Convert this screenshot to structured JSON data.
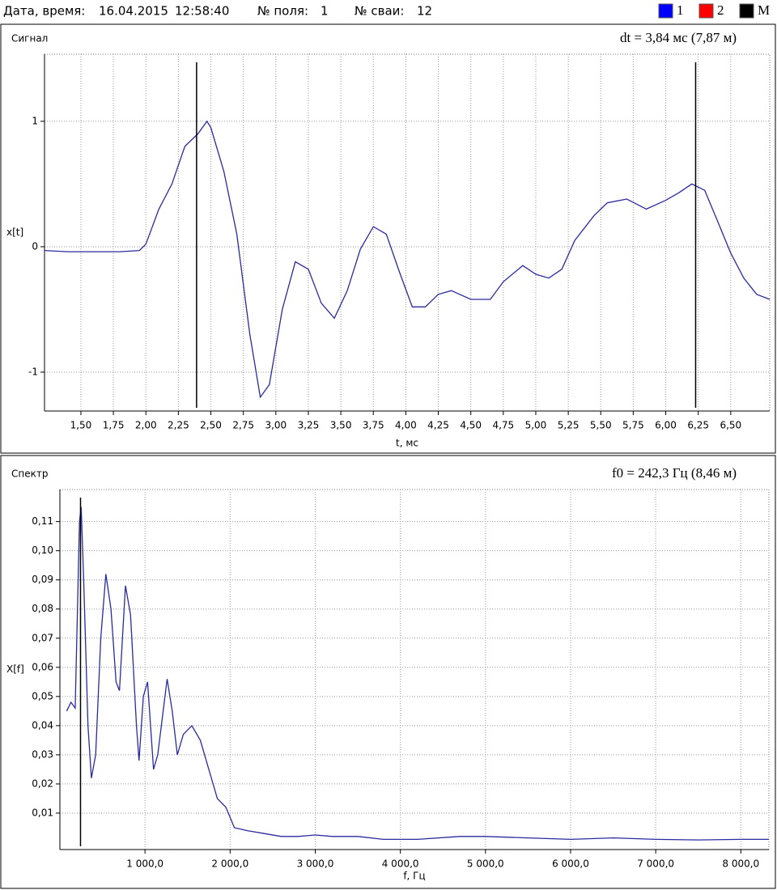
{
  "header": {
    "date_label": "Дата, время:",
    "date": "16.04.2015",
    "time": "12:58:40",
    "field_label": "№ поля:",
    "field": "1",
    "pile_label": "№ сваи:",
    "pile": "12",
    "legend": [
      {
        "name": "1",
        "color": "#0000ff"
      },
      {
        "name": "2",
        "color": "#ff0000"
      },
      {
        "name": "M",
        "color": "#000000"
      }
    ]
  },
  "chart_data": [
    {
      "type": "line",
      "title": "Сигнал",
      "annotation": "dt = 3,84 мс  (7,87 м)",
      "ylabel": "x[t]",
      "xlabel": "t, мс",
      "color": "#2a2aa0",
      "grid": true,
      "x": [
        1.22,
        1.4,
        1.6,
        1.8,
        1.95,
        2.0,
        2.1,
        2.2,
        2.3,
        2.4,
        2.47,
        2.5,
        2.6,
        2.7,
        2.8,
        2.88,
        2.95,
        3.05,
        3.15,
        3.25,
        3.35,
        3.45,
        3.55,
        3.65,
        3.75,
        3.85,
        3.95,
        4.05,
        4.15,
        4.25,
        4.35,
        4.5,
        4.65,
        4.75,
        4.9,
        5.0,
        5.1,
        5.2,
        5.3,
        5.45,
        5.55,
        5.7,
        5.85,
        6.0,
        6.1,
        6.2,
        6.3,
        6.4,
        6.5,
        6.6,
        6.7,
        6.8
      ],
      "values": [
        -0.03,
        -0.04,
        -0.04,
        -0.04,
        -0.03,
        0.02,
        0.3,
        0.5,
        0.8,
        0.9,
        1.0,
        0.95,
        0.6,
        0.1,
        -0.7,
        -1.2,
        -1.1,
        -0.5,
        -0.12,
        -0.18,
        -0.45,
        -0.57,
        -0.35,
        -0.02,
        0.16,
        0.1,
        -0.2,
        -0.48,
        -0.48,
        -0.38,
        -0.35,
        -0.42,
        -0.42,
        -0.28,
        -0.15,
        -0.22,
        -0.25,
        -0.18,
        0.05,
        0.25,
        0.35,
        0.38,
        0.3,
        0.37,
        0.43,
        0.5,
        0.45,
        0.2,
        -0.05,
        -0.25,
        -0.38,
        -0.42
      ],
      "cursors": [
        2.39,
        6.23
      ],
      "xlim": [
        1.22,
        6.8
      ],
      "ylim": [
        -1.31,
        1.535
      ],
      "xticks": [
        {
          "value": 1.5,
          "label": "1,50"
        },
        {
          "value": 1.75,
          "label": "1,75"
        },
        {
          "value": 2.0,
          "label": "2,00"
        },
        {
          "value": 2.25,
          "label": "2,25"
        },
        {
          "value": 2.5,
          "label": "2,50"
        },
        {
          "value": 2.75,
          "label": "2,75"
        },
        {
          "value": 3.0,
          "label": "3,00"
        },
        {
          "value": 3.25,
          "label": "3,25"
        },
        {
          "value": 3.5,
          "label": "3,50"
        },
        {
          "value": 3.75,
          "label": "3,75"
        },
        {
          "value": 4.0,
          "label": "4,00"
        },
        {
          "value": 4.25,
          "label": "4,25"
        },
        {
          "value": 4.5,
          "label": "4,50"
        },
        {
          "value": 4.75,
          "label": "4,75"
        },
        {
          "value": 5.0,
          "label": "5,00"
        },
        {
          "value": 5.25,
          "label": "5,25"
        },
        {
          "value": 5.5,
          "label": "5,50"
        },
        {
          "value": 5.75,
          "label": "5,75"
        },
        {
          "value": 6.0,
          "label": "6,00"
        },
        {
          "value": 6.25,
          "label": "6,25"
        },
        {
          "value": 6.5,
          "label": "6,50"
        }
      ],
      "yticks": [
        1,
        0,
        -1
      ]
    },
    {
      "type": "line",
      "title": "Спектр",
      "annotation": "f0 = 242,3 Гц  (8,46 м)",
      "ylabel": "X[f]",
      "xlabel": "f, Гц",
      "color": "#2a2aa0",
      "grid": true,
      "x": [
        80,
        130,
        180,
        230,
        250,
        280,
        330,
        370,
        420,
        480,
        540,
        600,
        660,
        700,
        770,
        830,
        900,
        930,
        980,
        1030,
        1100,
        1150,
        1260,
        1320,
        1380,
        1450,
        1550,
        1650,
        1750,
        1850,
        1950,
        2050,
        2200,
        2400,
        2600,
        2800,
        3000,
        3200,
        3500,
        3800,
        4200,
        4700,
        5000,
        5500,
        6000,
        6500,
        7000,
        7500,
        8000,
        8330
      ],
      "values": [
        0.045,
        0.048,
        0.046,
        0.11,
        0.115,
        0.09,
        0.04,
        0.022,
        0.03,
        0.07,
        0.092,
        0.08,
        0.055,
        0.052,
        0.088,
        0.078,
        0.04,
        0.028,
        0.05,
        0.055,
        0.025,
        0.03,
        0.056,
        0.045,
        0.03,
        0.037,
        0.04,
        0.035,
        0.025,
        0.015,
        0.012,
        0.005,
        0.004,
        0.003,
        0.002,
        0.002,
        0.0025,
        0.002,
        0.002,
        0.001,
        0.001,
        0.002,
        0.002,
        0.0015,
        0.001,
        0.0015,
        0.001,
        0.0008,
        0.001,
        0.001
      ],
      "cursors": [
        242.3
      ],
      "xlim": [
        0,
        8330
      ],
      "ylim": [
        -0.0025,
        0.121
      ],
      "xticks": [
        {
          "value": 1000,
          "label": "1 000,0"
        },
        {
          "value": 2000,
          "label": "2 000,0"
        },
        {
          "value": 3000,
          "label": "3 000,0"
        },
        {
          "value": 4000,
          "label": "4 000,0"
        },
        {
          "value": 5000,
          "label": "5 000,0"
        },
        {
          "value": 6000,
          "label": "6 000,0"
        },
        {
          "value": 7000,
          "label": "7 000,0"
        },
        {
          "value": 8000,
          "label": "8 000,0"
        }
      ],
      "yticks": [
        {
          "value": 0.01,
          "label": "0,01"
        },
        {
          "value": 0.02,
          "label": "0,02"
        },
        {
          "value": 0.03,
          "label": "0,03"
        },
        {
          "value": 0.04,
          "label": "0,04"
        },
        {
          "value": 0.05,
          "label": "0,05"
        },
        {
          "value": 0.06,
          "label": "0,06"
        },
        {
          "value": 0.07,
          "label": "0,07"
        },
        {
          "value": 0.08,
          "label": "0,08"
        },
        {
          "value": 0.09,
          "label": "0,09"
        },
        {
          "value": 0.1,
          "label": "0,10"
        },
        {
          "value": 0.11,
          "label": "0,11"
        }
      ]
    }
  ]
}
